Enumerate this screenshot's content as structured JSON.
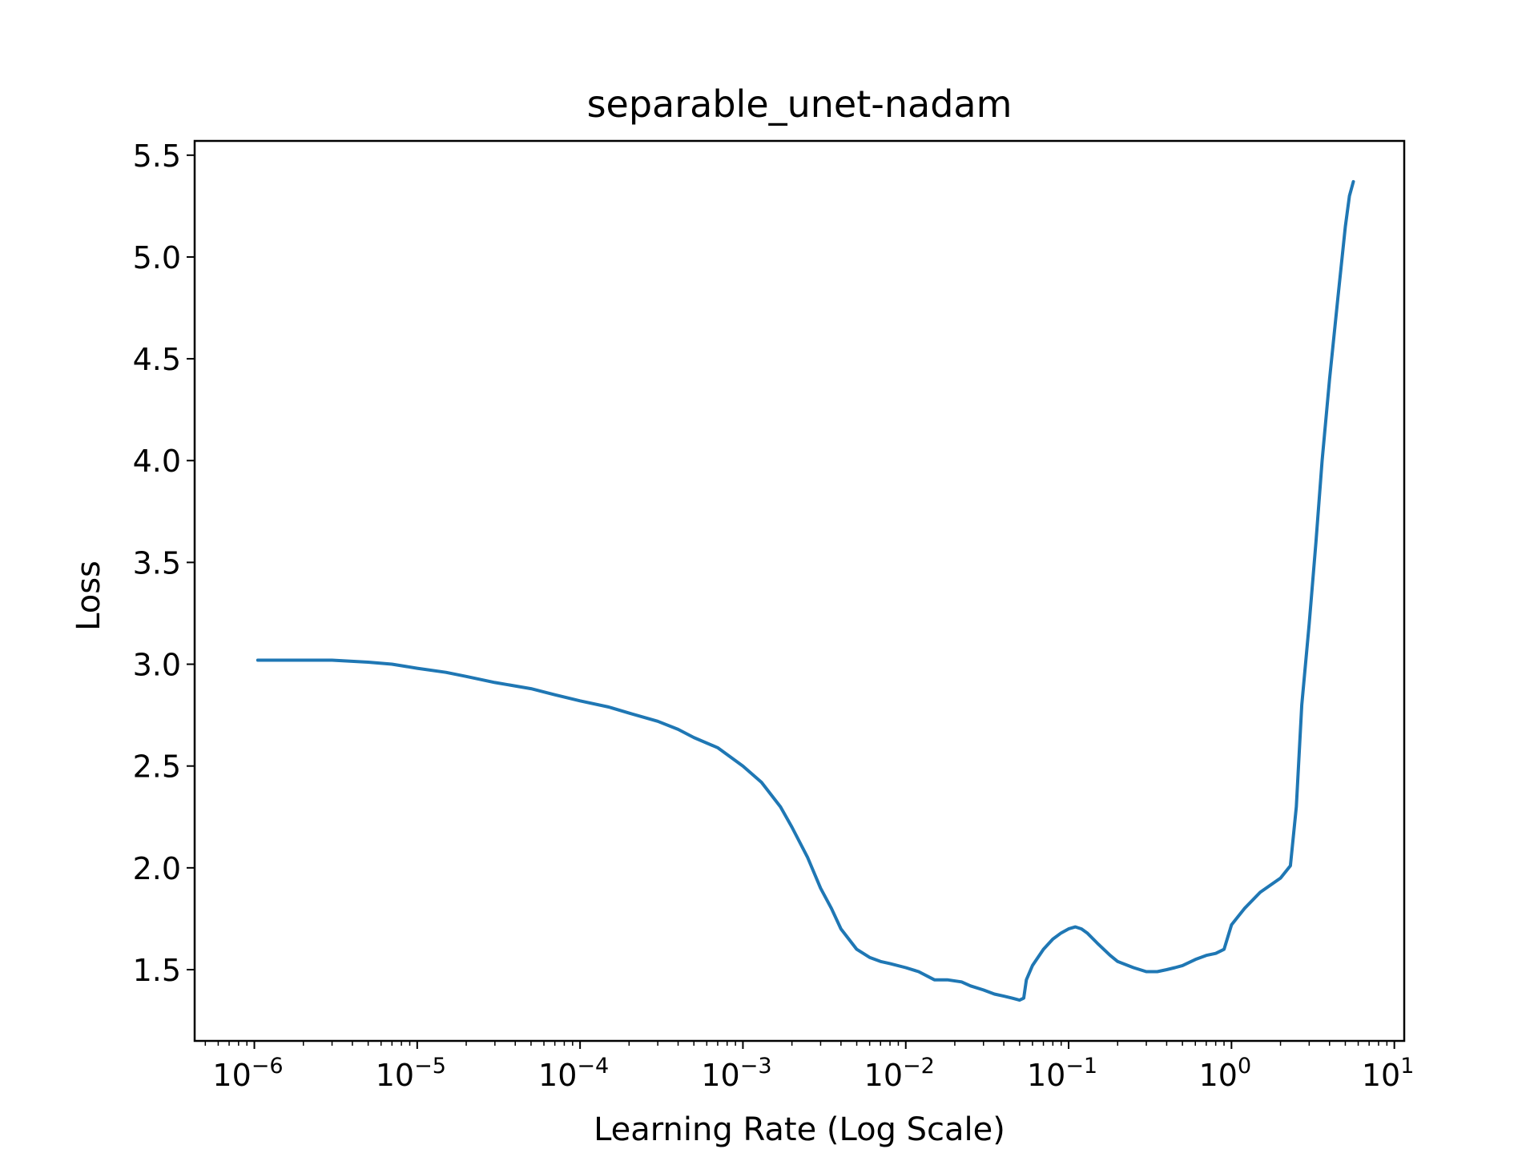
{
  "chart_data": {
    "type": "line",
    "title": "separable_unet-nadam",
    "xlabel": "Learning Rate (Log Scale)",
    "ylabel": "Loss",
    "x_scale": "log",
    "xlim": [
      4.3e-07,
      11.5
    ],
    "ylim": [
      1.15,
      5.57
    ],
    "grid": false,
    "line_color": "#1f77b4",
    "x_ticks": [
      {
        "value": 1e-06,
        "base": "10",
        "exp": "−6"
      },
      {
        "value": 1e-05,
        "base": "10",
        "exp": "−5"
      },
      {
        "value": 0.0001,
        "base": "10",
        "exp": "−4"
      },
      {
        "value": 0.001,
        "base": "10",
        "exp": "−3"
      },
      {
        "value": 0.01,
        "base": "10",
        "exp": "−2"
      },
      {
        "value": 0.1,
        "base": "10",
        "exp": "−1"
      },
      {
        "value": 1,
        "base": "10",
        "exp": "0"
      },
      {
        "value": 10,
        "base": "10",
        "exp": "1"
      }
    ],
    "y_ticks": [
      {
        "value": 1.5,
        "label": "1.5"
      },
      {
        "value": 2.0,
        "label": "2.0"
      },
      {
        "value": 2.5,
        "label": "2.5"
      },
      {
        "value": 3.0,
        "label": "3.0"
      },
      {
        "value": 3.5,
        "label": "3.5"
      },
      {
        "value": 4.0,
        "label": "4.0"
      },
      {
        "value": 4.5,
        "label": "4.5"
      },
      {
        "value": 5.0,
        "label": "5.0"
      },
      {
        "value": 5.5,
        "label": "5.5"
      }
    ],
    "series": [
      {
        "x": [
          1.05e-06,
          2e-06,
          3e-06,
          5e-06,
          7e-06,
          1e-05,
          1.5e-05,
          2e-05,
          3e-05,
          5e-05,
          7e-05,
          0.0001,
          0.00015,
          0.0002,
          0.0003,
          0.0004,
          0.0005,
          0.0007,
          0.001,
          0.0013,
          0.0017,
          0.002,
          0.0025,
          0.003,
          0.0035,
          0.004,
          0.005,
          0.006,
          0.007,
          0.008,
          0.01,
          0.012,
          0.015,
          0.018,
          0.022,
          0.025,
          0.03,
          0.035,
          0.04,
          0.045,
          0.05,
          0.053,
          0.055,
          0.06,
          0.07,
          0.08,
          0.09,
          0.1,
          0.11,
          0.12,
          0.13,
          0.15,
          0.18,
          0.2,
          0.25,
          0.3,
          0.35,
          0.4,
          0.45,
          0.5,
          0.6,
          0.7,
          0.8,
          0.9,
          1.0,
          1.2,
          1.5,
          2.0,
          2.3,
          2.5,
          2.7,
          3.0,
          3.3,
          3.6,
          4.0,
          4.5,
          5.0,
          5.3,
          5.6
        ],
        "y": [
          3.02,
          3.02,
          3.02,
          3.01,
          3.0,
          2.98,
          2.96,
          2.94,
          2.91,
          2.88,
          2.85,
          2.82,
          2.79,
          2.76,
          2.72,
          2.68,
          2.64,
          2.59,
          2.5,
          2.42,
          2.3,
          2.2,
          2.05,
          1.9,
          1.8,
          1.7,
          1.6,
          1.56,
          1.54,
          1.53,
          1.51,
          1.49,
          1.45,
          1.45,
          1.44,
          1.42,
          1.4,
          1.38,
          1.37,
          1.36,
          1.35,
          1.36,
          1.45,
          1.52,
          1.6,
          1.65,
          1.68,
          1.7,
          1.71,
          1.7,
          1.68,
          1.63,
          1.57,
          1.54,
          1.51,
          1.49,
          1.49,
          1.5,
          1.51,
          1.52,
          1.55,
          1.57,
          1.58,
          1.6,
          1.72,
          1.8,
          1.88,
          1.95,
          2.01,
          2.3,
          2.8,
          3.2,
          3.6,
          4.0,
          4.4,
          4.8,
          5.15,
          5.3,
          5.37
        ]
      }
    ]
  }
}
